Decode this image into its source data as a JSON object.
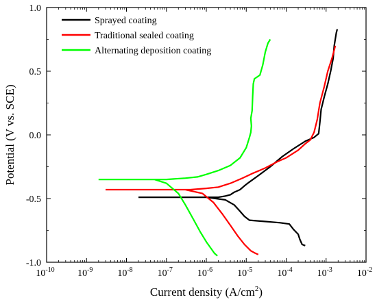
{
  "chart_data": {
    "type": "line",
    "xlabel": "Current density (A/cm",
    "xlabel_sup": "2",
    "xlabel_tail": ")",
    "ylabel": "Potential (V vs. SCE)",
    "x_scale": "log",
    "xlim": [
      1e-10,
      0.01
    ],
    "ylim": [
      -1.0,
      1.0
    ],
    "grid": false,
    "legend_position": "top-left",
    "x_ticks": [
      {
        "base": "10",
        "exp": "-10"
      },
      {
        "base": "10",
        "exp": "-9"
      },
      {
        "base": "10",
        "exp": "-8"
      },
      {
        "base": "10",
        "exp": "-7"
      },
      {
        "base": "10",
        "exp": "-6"
      },
      {
        "base": "10",
        "exp": "-5"
      },
      {
        "base": "10",
        "exp": "-4"
      },
      {
        "base": "10",
        "exp": "-3"
      },
      {
        "base": "10",
        "exp": "-2"
      }
    ],
    "y_ticks": [
      "-1.0",
      "-0.5",
      "0.0",
      "0.5",
      "1.0"
    ],
    "series": [
      {
        "name": "Sprayed coating",
        "color": "#000000",
        "points": [
          [
            2e-08,
            -0.49
          ],
          [
            1e-07,
            -0.49
          ],
          [
            3e-07,
            -0.49
          ],
          [
            1e-06,
            -0.49
          ],
          [
            2e-06,
            -0.49
          ],
          [
            3e-06,
            -0.48
          ],
          [
            4e-06,
            -0.47
          ],
          [
            5e-06,
            -0.45
          ],
          [
            7e-06,
            -0.43
          ],
          [
            9e-06,
            -0.4
          ],
          [
            1.2e-05,
            -0.37
          ],
          [
            2e-05,
            -0.32
          ],
          [
            4e-05,
            -0.25
          ],
          [
            8e-05,
            -0.17
          ],
          [
            0.00015,
            -0.11
          ],
          [
            0.0003,
            -0.05
          ],
          [
            0.0005,
            -0.02
          ],
          [
            0.00065,
            0.01
          ],
          [
            0.0007,
            0.1
          ],
          [
            0.00075,
            0.2
          ],
          [
            0.0009,
            0.3
          ],
          [
            0.0011,
            0.4
          ],
          [
            0.0013,
            0.5
          ],
          [
            0.0015,
            0.6
          ],
          [
            0.0016,
            0.7
          ],
          [
            0.0018,
            0.8
          ],
          [
            0.0019,
            0.83
          ],
          null,
          [
            1e-06,
            -0.49
          ],
          [
            3e-06,
            -0.51
          ],
          [
            5e-06,
            -0.55
          ],
          [
            7e-06,
            -0.6
          ],
          [
            9e-06,
            -0.64
          ],
          [
            1.2e-05,
            -0.67
          ],
          [
            3e-05,
            -0.68
          ],
          [
            7e-05,
            -0.69
          ],
          [
            0.00012,
            -0.7
          ],
          [
            0.00015,
            -0.74
          ],
          [
            0.0002,
            -0.78
          ],
          [
            0.00022,
            -0.82
          ],
          [
            0.00025,
            -0.86
          ],
          [
            0.0003,
            -0.87
          ]
        ]
      },
      {
        "name": "Traditional sealed coating",
        "color": "#ff0000",
        "points": [
          [
            3e-09,
            -0.43
          ],
          [
            2e-08,
            -0.43
          ],
          [
            1e-07,
            -0.43
          ],
          [
            4e-07,
            -0.43
          ],
          [
            1e-06,
            -0.42
          ],
          [
            2e-06,
            -0.41
          ],
          [
            4e-06,
            -0.38
          ],
          [
            8e-06,
            -0.34
          ],
          [
            1.5e-05,
            -0.3
          ],
          [
            3e-05,
            -0.26
          ],
          [
            6e-05,
            -0.21
          ],
          [
            0.0001,
            -0.18
          ],
          [
            0.0002,
            -0.12
          ],
          [
            0.0003,
            -0.07
          ],
          [
            0.0004,
            -0.04
          ],
          [
            0.0005,
            0.02
          ],
          [
            0.0006,
            0.12
          ],
          [
            0.0007,
            0.25
          ],
          [
            0.0009,
            0.38
          ],
          [
            0.0011,
            0.5
          ],
          [
            0.0014,
            0.6
          ],
          [
            0.0017,
            0.7
          ],
          null,
          [
            3e-07,
            -0.43
          ],
          [
            8e-07,
            -0.46
          ],
          [
            1.5e-06,
            -0.53
          ],
          [
            2.5e-06,
            -0.62
          ],
          [
            4e-06,
            -0.71
          ],
          [
            6e-06,
            -0.79
          ],
          [
            9e-06,
            -0.86
          ],
          [
            1.3e-05,
            -0.91
          ],
          [
            1.7e-05,
            -0.93
          ],
          [
            2e-05,
            -0.94
          ]
        ]
      },
      {
        "name": "Alternating deposition coating",
        "color": "#00ff00",
        "points": [
          [
            2e-09,
            -0.35
          ],
          [
            2e-08,
            -0.35
          ],
          [
            1e-07,
            -0.35
          ],
          [
            3e-07,
            -0.34
          ],
          [
            6e-07,
            -0.33
          ],
          [
            1e-06,
            -0.31
          ],
          [
            2e-06,
            -0.28
          ],
          [
            4e-06,
            -0.24
          ],
          [
            7e-06,
            -0.18
          ],
          [
            1e-05,
            -0.1
          ],
          [
            1.2e-05,
            -0.02
          ],
          [
            1.3e-05,
            0.02
          ],
          [
            1.35e-05,
            0.07
          ],
          [
            1.3e-05,
            0.13
          ],
          [
            1.4e-05,
            0.19
          ],
          [
            1.45e-05,
            0.3
          ],
          [
            1.5e-05,
            0.4
          ],
          [
            1.6e-05,
            0.44
          ],
          [
            2.2e-05,
            0.47
          ],
          [
            2.6e-05,
            0.55
          ],
          [
            3e-05,
            0.65
          ],
          [
            3.5e-05,
            0.72
          ],
          [
            4e-05,
            0.75
          ],
          null,
          [
            5e-08,
            -0.35
          ],
          [
            1e-07,
            -0.38
          ],
          [
            2e-07,
            -0.46
          ],
          [
            3e-07,
            -0.55
          ],
          [
            4.5e-07,
            -0.65
          ],
          [
            7e-07,
            -0.76
          ],
          [
            1e-06,
            -0.84
          ],
          [
            1.3e-06,
            -0.89
          ],
          [
            1.6e-06,
            -0.93
          ],
          [
            1.9e-06,
            -0.95
          ]
        ]
      }
    ]
  }
}
